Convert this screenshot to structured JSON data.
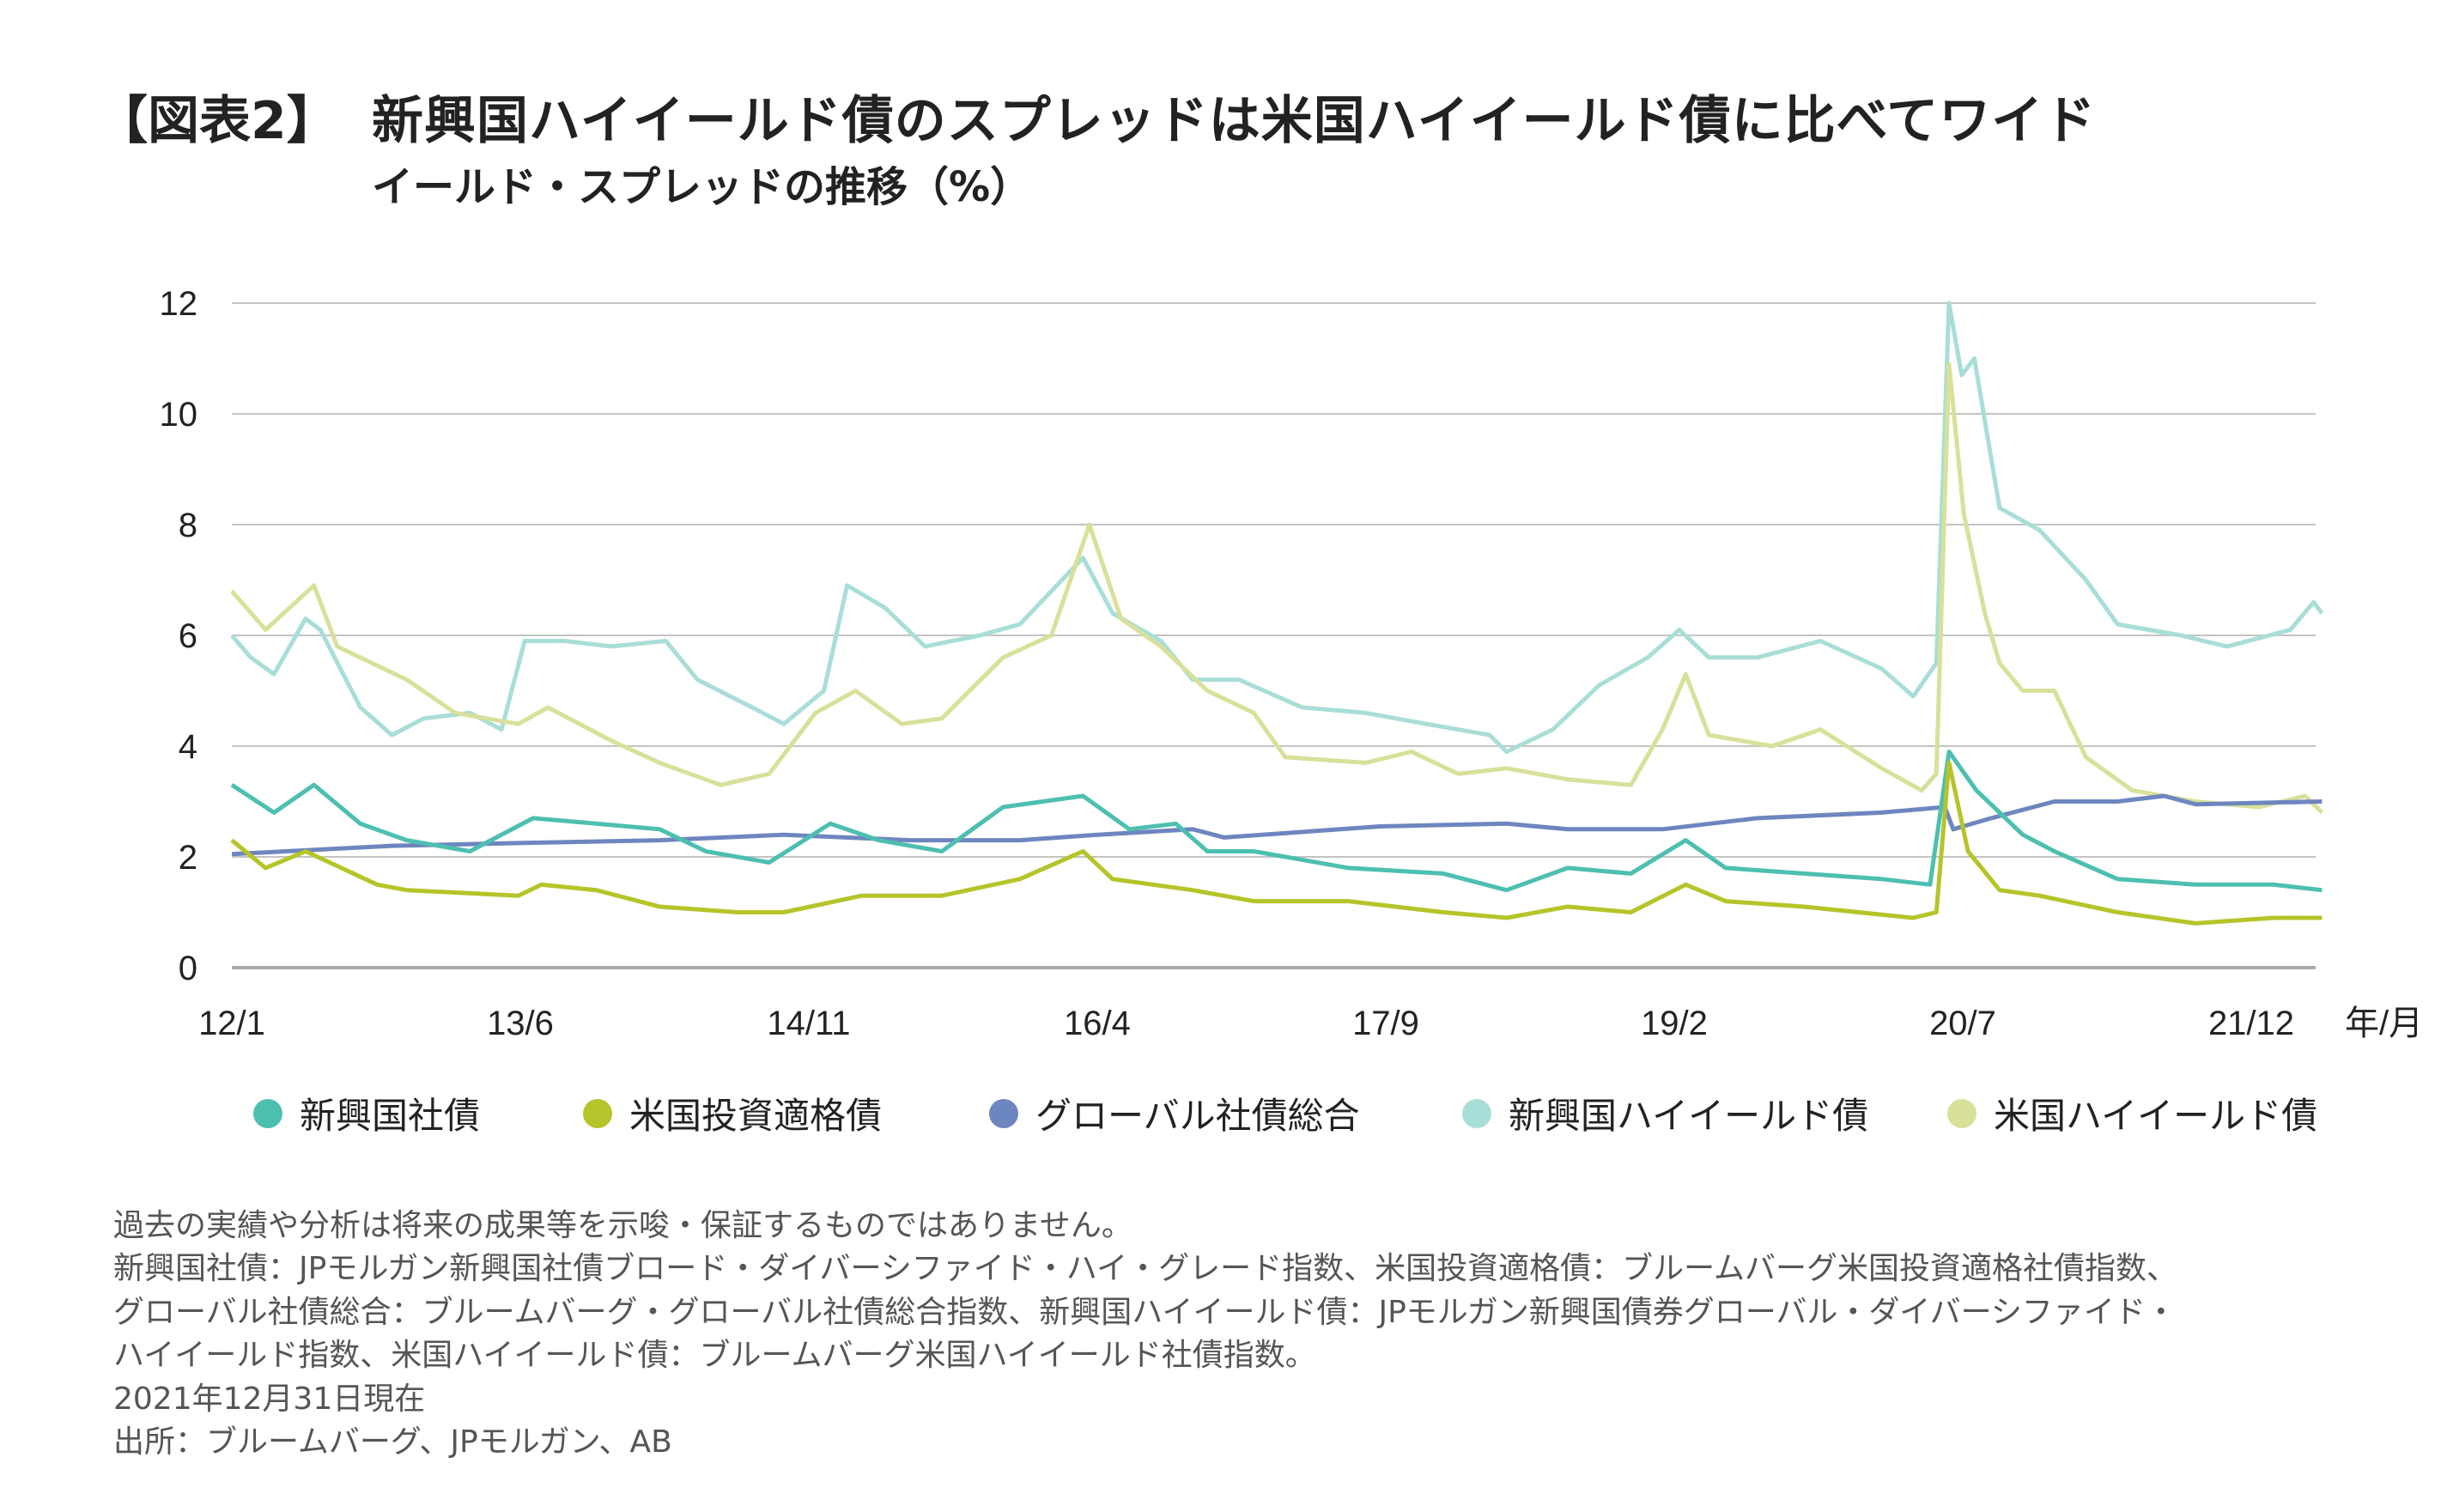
{
  "title": {
    "tag": "【図表2】",
    "main": "新興国ハイイールド債のスプレッドは米国ハイイールド債に比べてワイド",
    "subtitle": "イールド・スプレッドの推移（%）"
  },
  "chart_data": {
    "type": "line",
    "title": "イールド・スプレッドの推移（%）",
    "xlabel": "年/月",
    "ylabel": "",
    "ylim": [
      0,
      12
    ],
    "yticks": [
      "0",
      "2",
      "4",
      "6",
      "8",
      "10",
      "12"
    ],
    "xticks": [
      "12/1",
      "13/6",
      "14/11",
      "16/4",
      "17/9",
      "19/2",
      "20/7",
      "21/12"
    ],
    "grid": true,
    "legend": "bottom",
    "series": [
      {
        "name": "新興国ハイイールド債",
        "color": "#a8ded7",
        "x": [
          2012.0,
          2012.09,
          2012.2,
          2012.35,
          2012.42,
          2012.61,
          2012.76,
          2012.91,
          2013.13,
          2013.28,
          2013.39,
          2013.58,
          2013.8,
          2014.06,
          2014.21,
          2014.47,
          2014.62,
          2014.81,
          2014.92,
          2015.1,
          2015.29,
          2015.55,
          2015.74,
          2016.04,
          2016.18,
          2016.41,
          2016.56,
          2016.78,
          2017.08,
          2017.38,
          2017.67,
          2017.97,
          2018.05,
          2018.27,
          2018.49,
          2018.72,
          2018.87,
          2019.01,
          2019.24,
          2019.54,
          2019.83,
          2019.98,
          2020.09,
          2020.15,
          2020.21,
          2020.27,
          2020.39,
          2020.58,
          2020.8,
          2020.95,
          2021.25,
          2021.47,
          2021.77,
          2021.88,
          2021.92
        ],
        "values": [
          6.0,
          5.6,
          5.3,
          6.3,
          6.1,
          4.7,
          4.2,
          4.5,
          4.6,
          4.3,
          5.9,
          5.9,
          5.8,
          5.9,
          5.2,
          4.7,
          4.4,
          5.0,
          6.9,
          6.5,
          5.8,
          6.0,
          6.2,
          7.4,
          6.4,
          5.9,
          5.2,
          5.2,
          4.7,
          4.6,
          4.4,
          4.2,
          3.9,
          4.3,
          5.1,
          5.6,
          6.1,
          5.6,
          5.6,
          5.9,
          5.4,
          4.9,
          5.5,
          12.0,
          10.7,
          11.0,
          8.3,
          7.9,
          7.0,
          6.2,
          6.0,
          5.8,
          6.1,
          6.6,
          6.4
        ]
      },
      {
        "name": "米国ハイイールド債",
        "color": "#d9e09a",
        "x": [
          2012.0,
          2012.16,
          2012.39,
          2012.5,
          2012.83,
          2013.06,
          2013.36,
          2013.5,
          2013.8,
          2014.03,
          2014.32,
          2014.55,
          2014.77,
          2014.96,
          2015.18,
          2015.37,
          2015.66,
          2015.89,
          2016.07,
          2016.22,
          2016.41,
          2016.63,
          2016.85,
          2017.0,
          2017.38,
          2017.6,
          2017.82,
          2018.05,
          2018.34,
          2018.64,
          2018.79,
          2018.9,
          2019.01,
          2019.31,
          2019.54,
          2019.83,
          2020.02,
          2020.09,
          2020.15,
          2020.22,
          2020.32,
          2020.39,
          2020.5,
          2020.65,
          2020.8,
          2021.02,
          2021.32,
          2021.62,
          2021.84,
          2021.92
        ],
        "values": [
          6.8,
          6.1,
          6.9,
          5.8,
          5.2,
          4.6,
          4.4,
          4.7,
          4.1,
          3.7,
          3.3,
          3.5,
          4.6,
          5.0,
          4.4,
          4.5,
          5.6,
          6.0,
          8.0,
          6.3,
          5.8,
          5.0,
          4.6,
          3.8,
          3.7,
          3.9,
          3.5,
          3.6,
          3.4,
          3.3,
          4.3,
          5.3,
          4.2,
          4.0,
          4.3,
          3.6,
          3.2,
          3.5,
          10.9,
          8.2,
          6.4,
          5.5,
          5.0,
          5.0,
          3.8,
          3.2,
          3.0,
          2.9,
          3.1,
          2.8
        ]
      },
      {
        "name": "グローバル社債総合",
        "color": "#6e86bf",
        "x": [
          2012.0,
          2012.76,
          2013.36,
          2014.03,
          2014.62,
          2015.22,
          2015.74,
          2016.11,
          2016.56,
          2016.71,
          2017.45,
          2018.05,
          2018.34,
          2018.79,
          2019.24,
          2019.83,
          2020.13,
          2020.17,
          2020.35,
          2020.65,
          2020.95,
          2021.17,
          2021.32,
          2021.92
        ],
        "values": [
          2.05,
          2.2,
          2.25,
          2.3,
          2.4,
          2.3,
          2.3,
          2.4,
          2.5,
          2.35,
          2.55,
          2.6,
          2.5,
          2.5,
          2.7,
          2.8,
          2.9,
          2.5,
          2.7,
          3.0,
          3.0,
          3.1,
          2.95,
          3.0
        ]
      },
      {
        "name": "新興国社債",
        "color": "#4dbfb0",
        "x": [
          2012.0,
          2012.2,
          2012.39,
          2012.61,
          2012.83,
          2013.13,
          2013.43,
          2013.73,
          2014.03,
          2014.25,
          2014.55,
          2014.84,
          2015.07,
          2015.37,
          2015.66,
          2016.04,
          2016.26,
          2016.48,
          2016.63,
          2016.85,
          2017.3,
          2017.75,
          2018.05,
          2018.34,
          2018.64,
          2018.9,
          2019.09,
          2019.46,
          2019.83,
          2020.06,
          2020.15,
          2020.28,
          2020.5,
          2020.65,
          2020.95,
          2021.32,
          2021.69,
          2021.92
        ],
        "values": [
          3.3,
          2.8,
          3.3,
          2.6,
          2.3,
          2.1,
          2.7,
          2.6,
          2.5,
          2.1,
          1.9,
          2.6,
          2.3,
          2.1,
          2.9,
          3.1,
          2.5,
          2.6,
          2.1,
          2.1,
          1.8,
          1.7,
          1.4,
          1.8,
          1.7,
          2.3,
          1.8,
          1.7,
          1.6,
          1.5,
          3.9,
          3.2,
          2.4,
          2.1,
          1.6,
          1.5,
          1.5,
          1.4
        ]
      },
      {
        "name": "米国投資適格債",
        "color": "#b5c429",
        "x": [
          2012.0,
          2012.16,
          2012.35,
          2012.69,
          2012.83,
          2013.36,
          2013.47,
          2013.73,
          2014.03,
          2014.4,
          2014.62,
          2014.99,
          2015.37,
          2015.74,
          2016.04,
          2016.18,
          2016.56,
          2016.85,
          2017.3,
          2017.75,
          2018.05,
          2018.34,
          2018.64,
          2018.9,
          2019.09,
          2019.46,
          2019.98,
          2020.09,
          2020.15,
          2020.24,
          2020.39,
          2020.58,
          2020.95,
          2021.32,
          2021.69,
          2021.92
        ],
        "values": [
          2.3,
          1.8,
          2.1,
          1.5,
          1.4,
          1.3,
          1.5,
          1.4,
          1.1,
          1.0,
          1.0,
          1.3,
          1.3,
          1.6,
          2.1,
          1.6,
          1.4,
          1.2,
          1.2,
          1.0,
          0.9,
          1.1,
          1.0,
          1.5,
          1.2,
          1.1,
          0.9,
          1.0,
          3.7,
          2.1,
          1.4,
          1.3,
          1.0,
          0.8,
          0.9,
          0.9
        ]
      }
    ]
  },
  "legend": [
    {
      "label": "新興国社債",
      "color": "#4dbfb0"
    },
    {
      "label": "米国投資適格債",
      "color": "#b5c429"
    },
    {
      "label": "グローバル社債総合",
      "color": "#6e86bf"
    },
    {
      "label": "新興国ハイイールド債",
      "color": "#a8ded7"
    },
    {
      "label": "米国ハイイールド債",
      "color": "#d9e09a"
    }
  ],
  "notes": [
    "過去の実績や分析は将来の成果等を示唆・保証するものではありません。",
    "新興国社債：JPモルガン新興国社債ブロード・ダイバーシファイド・ハイ・グレード指数、米国投資適格債：ブルームバーグ米国投資適格社債指数、",
    "グローバル社債総合：ブルームバーグ・グローバル社債総合指数、新興国ハイイールド債：JPモルガン新興国債券グローバル・ダイバーシファイド・",
    "ハイイールド指数、米国ハイイールド債：ブルームバーグ米国ハイイールド社債指数。",
    "2021年12月31日現在",
    "出所：ブルームバーグ、JPモルガン、AB"
  ]
}
